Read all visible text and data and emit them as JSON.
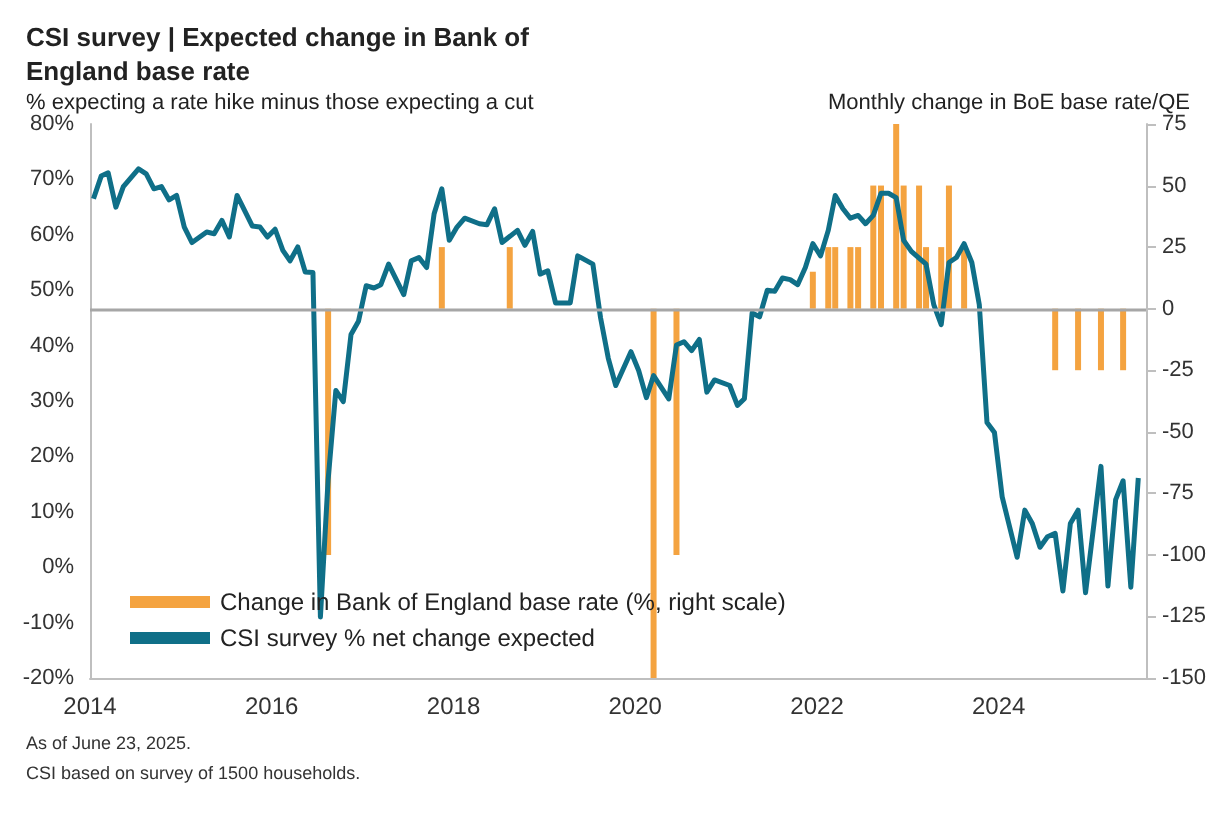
{
  "chart_data": {
    "type": "line",
    "title": "CSI survey | Expected change in Bank of England base rate",
    "subtitle": "% expecting a rate hike minus those expecting a cut",
    "y2label": "Monthly change in BoE base rate/QE",
    "annotations": [
      "As of June 23, 2025.",
      "CSI based on survey of 1500 households."
    ],
    "xlim": [
      "2014",
      "2025-08"
    ],
    "xticks": [
      "2014",
      "2016",
      "2018",
      "2020",
      "2022",
      "2024"
    ],
    "ylim": [
      -20,
      80
    ],
    "yticks": [
      {
        "value": -20,
        "label": "-20%"
      },
      {
        "value": -10,
        "label": "-10%"
      },
      {
        "value": 0,
        "label": "0%"
      },
      {
        "value": 10,
        "label": "10%"
      },
      {
        "value": 20,
        "label": "20%"
      },
      {
        "value": 30,
        "label": "30%"
      },
      {
        "value": 40,
        "label": "40%"
      },
      {
        "value": 50,
        "label": "50%"
      },
      {
        "value": 60,
        "label": "60%"
      },
      {
        "value": 70,
        "label": "70%"
      },
      {
        "value": 80,
        "label": "80%"
      }
    ],
    "y2lim": [
      -150,
      75
    ],
    "y2ticks": [
      -150,
      -125,
      -100,
      -75,
      -50,
      -25,
      0,
      25,
      50,
      75
    ],
    "ref_lines": [
      {
        "axis": "y2",
        "value": 0,
        "color": "#a6a6a6"
      }
    ],
    "legend": "bottom left",
    "grid": false,
    "series": [
      {
        "name": "Change in Bank of England base rate (%, right scale)",
        "type": "bar",
        "axis": "y2",
        "color": "#f4a340",
        "x": [
          "2016-08",
          "2017-11",
          "2018-08",
          "2020-03",
          "2020-06",
          "2021-12",
          "2022-02",
          "2022-03",
          "2022-05",
          "2022-06",
          "2022-08",
          "2022-09",
          "2022-11",
          "2022-12",
          "2023-02",
          "2023-03",
          "2023-05",
          "2023-06",
          "2023-08",
          "2024-08",
          "2024-11",
          "2025-02",
          "2025-05"
        ],
        "values": [
          -100,
          25,
          25,
          -150,
          -100,
          15,
          25,
          25,
          25,
          25,
          50,
          50,
          75,
          50,
          50,
          25,
          25,
          50,
          25,
          -25,
          -25,
          -25,
          -25
        ]
      },
      {
        "name": "CSI survey % net change expected",
        "color": "#0f6f88",
        "x": [
          "2014-01",
          "2014-02",
          "2014-03",
          "2014-04",
          "2014-05",
          "2014-07",
          "2014-08",
          "2014-09",
          "2014-10",
          "2014-11",
          "2014-12",
          "2015-01",
          "2015-02",
          "2015-04",
          "2015-05",
          "2015-06",
          "2015-07",
          "2015-08",
          "2015-10",
          "2015-11",
          "2015-12",
          "2016-01",
          "2016-02",
          "2016-03",
          "2016-04",
          "2016-05",
          "2016-06",
          "2016-07",
          "2016-08",
          "2016-09",
          "2016-10",
          "2016-11",
          "2016-12",
          "2017-01",
          "2017-02",
          "2017-03",
          "2017-04",
          "2017-06",
          "2017-07",
          "2017-08",
          "2017-09",
          "2017-10",
          "2017-11",
          "2017-12",
          "2018-01",
          "2018-02",
          "2018-04",
          "2018-05",
          "2018-06",
          "2018-07",
          "2018-09",
          "2018-10",
          "2018-11",
          "2018-12",
          "2019-01",
          "2019-02",
          "2019-04",
          "2019-05",
          "2019-07",
          "2019-08",
          "2019-09",
          "2019-10",
          "2019-12",
          "2020-01",
          "2020-02",
          "2020-03",
          "2020-05",
          "2020-06",
          "2020-07",
          "2020-08",
          "2020-09",
          "2020-10",
          "2020-11",
          "2021-01",
          "2021-02",
          "2021-03",
          "2021-04",
          "2021-05",
          "2021-06",
          "2021-07",
          "2021-08",
          "2021-09",
          "2021-10",
          "2021-11",
          "2021-12",
          "2022-01",
          "2022-02",
          "2022-03",
          "2022-04",
          "2022-05",
          "2022-06",
          "2022-07",
          "2022-08",
          "2022-09",
          "2022-10",
          "2022-11",
          "2022-12",
          "2023-01",
          "2023-03",
          "2023-04",
          "2023-05",
          "2023-06",
          "2023-07",
          "2023-08",
          "2023-09",
          "2023-10",
          "2023-11",
          "2023-12",
          "2024-01",
          "2024-03",
          "2024-04",
          "2024-05",
          "2024-06",
          "2024-07",
          "2024-08",
          "2024-09",
          "2024-10",
          "2024-11",
          "2024-12",
          "2025-02",
          "2025-03",
          "2025-04",
          "2025-05",
          "2025-06",
          "2025-07"
        ],
        "values": [
          66.5,
          70.6,
          71.2,
          65,
          68.7,
          71.9,
          71,
          68.3,
          68.7,
          66.3,
          67.1,
          61.4,
          58.6,
          60.5,
          60.2,
          62.6,
          59.6,
          67.1,
          61.6,
          61.4,
          59.6,
          61,
          57.2,
          55.3,
          57.8,
          53.3,
          53.2,
          -9,
          15.8,
          31.9,
          29.9,
          42,
          44.4,
          50.8,
          50.4,
          51,
          54.7,
          49.2,
          55.3,
          55.9,
          54.1,
          63.8,
          68.3,
          59,
          61.4,
          63,
          62,
          61.8,
          64.7,
          58.6,
          60.8,
          58.1,
          60.6,
          52.9,
          53.5,
          47.7,
          47.7,
          56.2,
          54.7,
          45,
          37.7,
          32.8,
          38.9,
          35.5,
          30.6,
          34.6,
          30.4,
          40.1,
          40.7,
          39.1,
          41.1,
          31.6,
          33.8,
          32.8,
          29.2,
          30.4,
          45.9,
          45.2,
          50,
          49.8,
          52.2,
          51.9,
          51,
          54.1,
          58.4,
          56.2,
          60.8,
          67.1,
          64.7,
          63,
          63.5,
          62,
          63.5,
          67.5,
          67.5,
          66.7,
          59,
          57,
          54.7,
          47.4,
          43.8,
          55,
          55.9,
          58.4,
          55,
          47.4,
          26.1,
          24.3,
          12.7,
          1.8,
          10.3,
          7.9,
          3.6,
          5.5,
          6.1,
          -4.3,
          7.9,
          10.3,
          -4.6,
          18.2,
          -3.4,
          12.2,
          15.6,
          -3.6,
          16.1
        ]
      }
    ]
  }
}
